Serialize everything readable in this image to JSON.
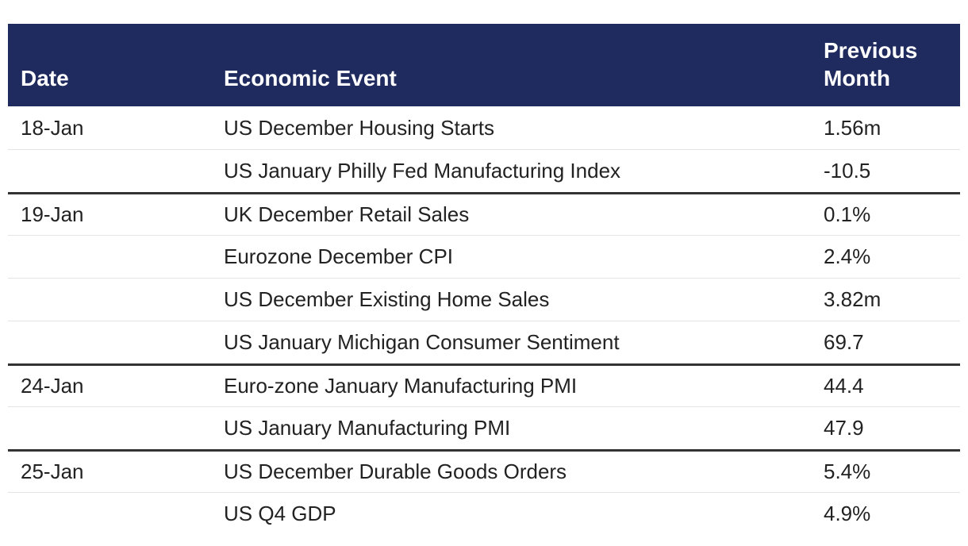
{
  "header": {
    "date": "Date",
    "event": "Economic Event",
    "previous": "Previous Month"
  },
  "colors": {
    "header_bg": "#1f2a5e",
    "header_text": "#ffffff",
    "group_divider": "#333333",
    "row_divider": "#e4e4e4"
  },
  "rows": [
    {
      "date": "18-Jan",
      "event": "US December Housing Starts",
      "previous": "1.56m"
    },
    {
      "date": "",
      "event": "US January Philly Fed Manufacturing Index",
      "previous": "-10.5"
    },
    {
      "date": "19-Jan",
      "event": "UK December Retail Sales",
      "previous": "0.1%"
    },
    {
      "date": "",
      "event": "Eurozone December CPI",
      "previous": "2.4%"
    },
    {
      "date": "",
      "event": "US December Existing Home Sales",
      "previous": "3.82m"
    },
    {
      "date": "",
      "event": "US January Michigan Consumer Sentiment",
      "previous": "69.7"
    },
    {
      "date": "24-Jan",
      "event": "Euro-zone January Manufacturing PMI",
      "previous": "44.4"
    },
    {
      "date": "",
      "event": "US January Manufacturing PMI",
      "previous": "47.9"
    },
    {
      "date": "25-Jan",
      "event": "US December Durable Goods Orders",
      "previous": "5.4%"
    },
    {
      "date": "",
      "event": "US Q4 GDP",
      "previous": "4.9%"
    }
  ]
}
